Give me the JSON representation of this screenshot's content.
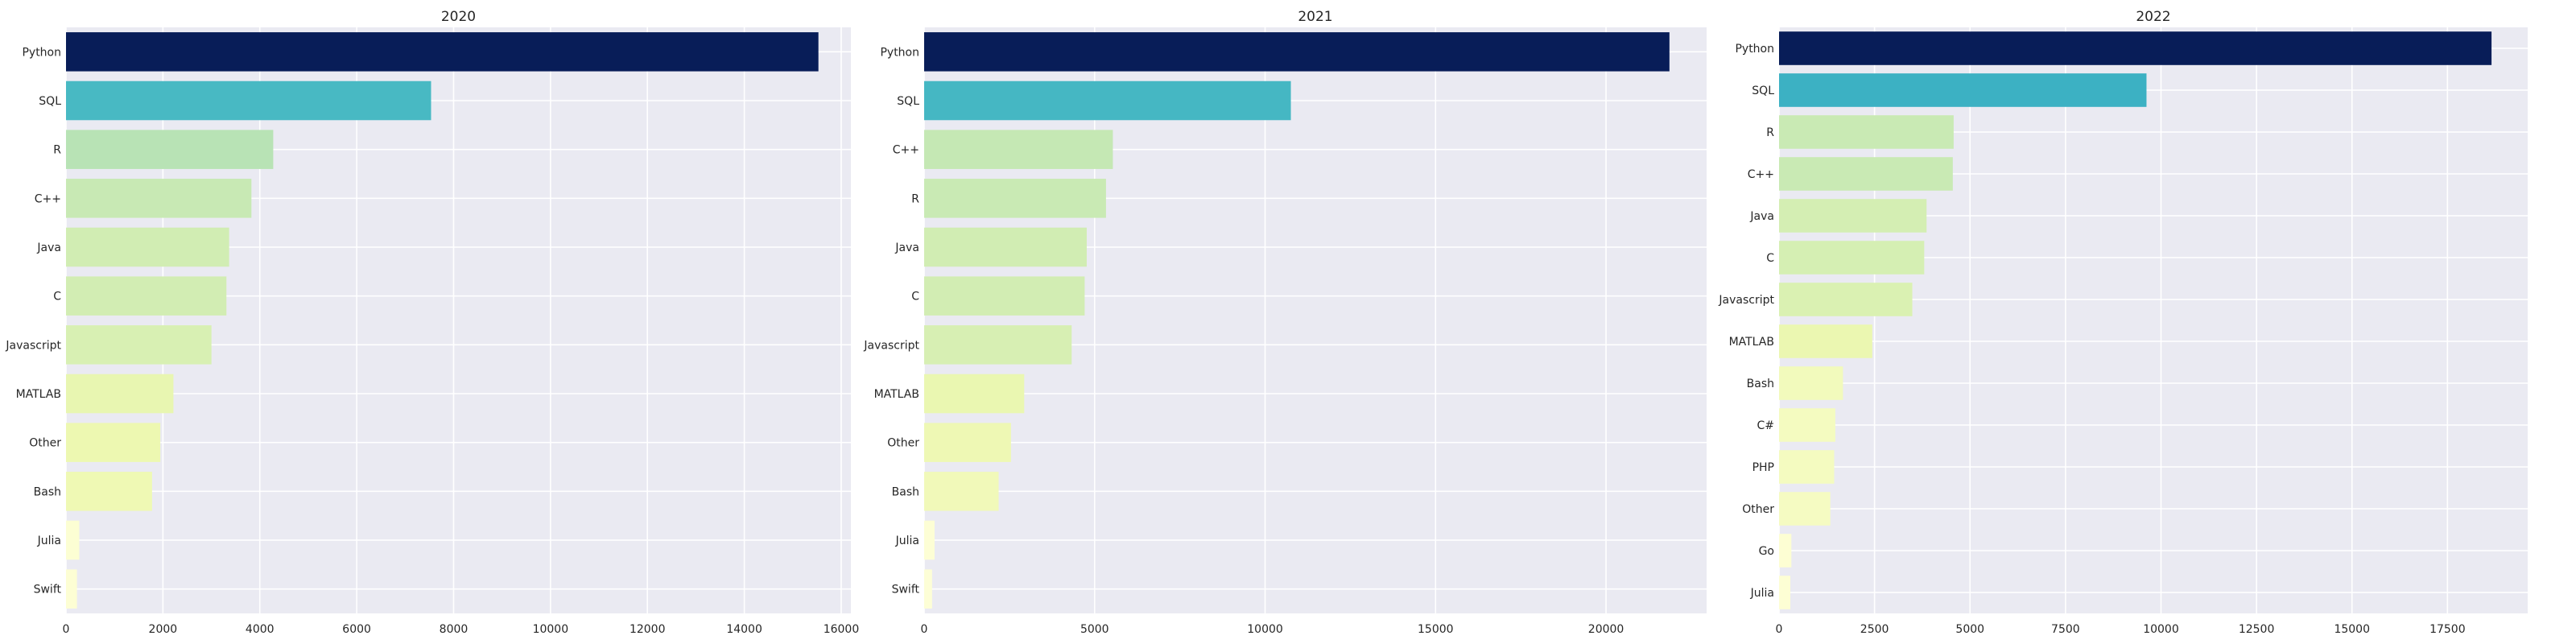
{
  "chart_data": [
    {
      "type": "bar",
      "orientation": "horizontal",
      "title": "2020",
      "categories": [
        "Python",
        "SQL",
        "R",
        "C++",
        "Java",
        "C",
        "Javascript",
        "MATLAB",
        "Other",
        "Bash",
        "Julia",
        "Swift"
      ],
      "values": [
        15530,
        7535,
        4277,
        3827,
        3367,
        3311,
        3002,
        2217,
        1946,
        1776,
        274,
        226
      ],
      "xlim": [
        0,
        16200
      ],
      "xticks": [
        0,
        2000,
        4000,
        6000,
        8000,
        10000,
        12000,
        14000,
        16000
      ],
      "xlabel": "",
      "ylabel": "",
      "grid": true,
      "legend": "none"
    },
    {
      "type": "bar",
      "orientation": "horizontal",
      "title": "2021",
      "categories": [
        "Python",
        "SQL",
        "C++",
        "R",
        "Java",
        "C",
        "Javascript",
        "MATLAB",
        "Other",
        "Bash",
        "Julia",
        "Swift"
      ],
      "values": [
        21860,
        10756,
        5535,
        5334,
        4769,
        4708,
        4327,
        2935,
        2547,
        2185,
        306,
        233
      ],
      "xlim": [
        0,
        22950
      ],
      "xticks": [
        0,
        5000,
        10000,
        15000,
        20000
      ],
      "xlabel": "",
      "ylabel": "",
      "grid": true,
      "legend": "none"
    },
    {
      "type": "bar",
      "orientation": "horizontal",
      "title": "2022",
      "categories": [
        "Python",
        "SQL",
        "R",
        "C++",
        "Java",
        "C",
        "Javascript",
        "MATLAB",
        "Bash",
        "C#",
        "PHP",
        "Other",
        "Go",
        "Julia"
      ],
      "values": [
        18653,
        9620,
        4571,
        4549,
        3862,
        3801,
        3489,
        2441,
        1674,
        1473,
        1443,
        1342,
        322,
        296
      ],
      "xlim": [
        0,
        19600
      ],
      "xticks": [
        0,
        2500,
        5000,
        7500,
        10000,
        12500,
        15000,
        17500
      ],
      "xlabel": "",
      "ylabel": "",
      "grid": true,
      "legend": "none"
    }
  ],
  "colors": {
    "background": "#eaeaf2",
    "grid": "#ffffff",
    "colormap": [
      "#ffffd9",
      "#edf8b1",
      "#c7e9b4",
      "#7fcdbb",
      "#41b6c4",
      "#1d91c0",
      "#225ea8",
      "#253494",
      "#081d58"
    ]
  }
}
